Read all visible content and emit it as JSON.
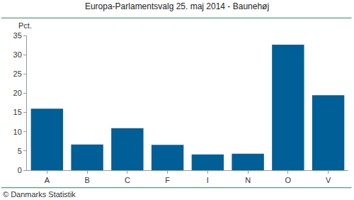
{
  "chart_data": {
    "type": "bar",
    "title": "Europa-Parlamentsvalg 25. maj 2014 - Baunehøj",
    "y_label": "Pct.",
    "source": "© Danmarks Statistik",
    "categories": [
      "A",
      "B",
      "C",
      "F",
      "I",
      "N",
      "O",
      "V"
    ],
    "values": [
      16.0,
      6.7,
      10.9,
      6.6,
      4.1,
      4.3,
      32.6,
      19.5
    ],
    "color": "#005f96",
    "ylim": [
      0,
      35
    ],
    "yticks": [
      0,
      5,
      10,
      15,
      20,
      25,
      30,
      35
    ],
    "grid": false
  }
}
